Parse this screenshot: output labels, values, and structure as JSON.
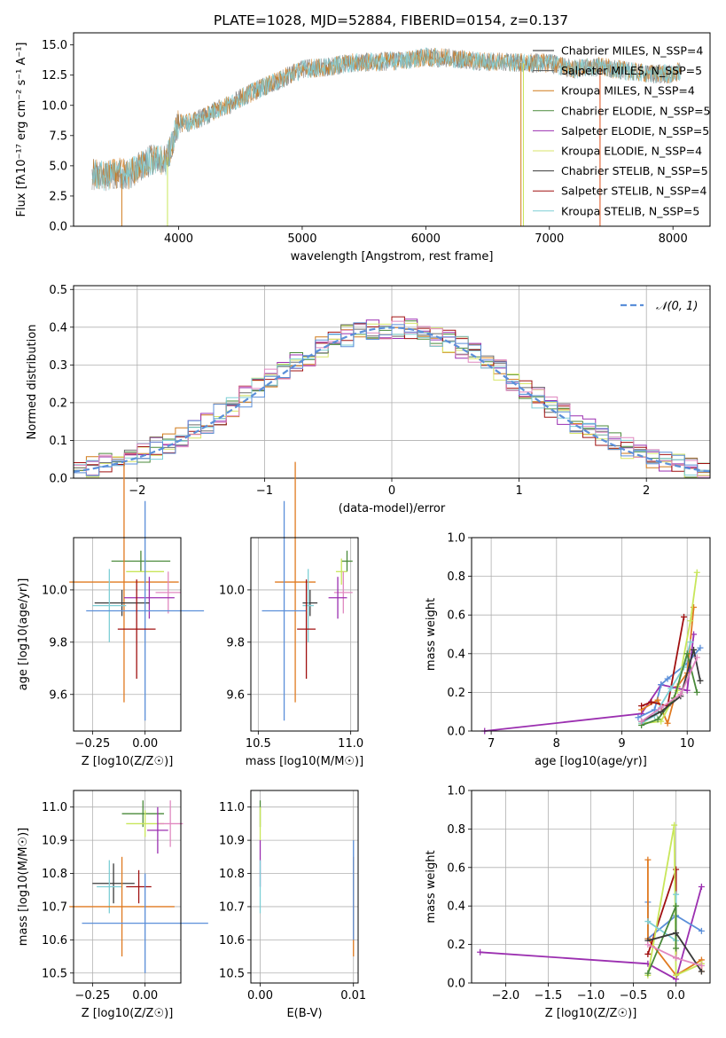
{
  "figure": {
    "title": "PLATE=1028, MJD=52884, FIBERID=0154, z=0.137"
  },
  "chart_data": [
    {
      "type": "line",
      "panel": "spectrum",
      "xlabel": "wavelength [Angstrom, rest frame]",
      "ylabel": "Flux [fλ10⁻¹⁷ erg cm⁻² s⁻¹ A⁻¹]",
      "xlim": [
        3150,
        8300
      ],
      "ylim": [
        0,
        16
      ],
      "xticks": [
        4000,
        5000,
        6000,
        7000,
        8000
      ],
      "yticks": [
        0.0,
        2.5,
        5.0,
        7.5,
        10.0,
        12.5,
        15.0
      ],
      "grid": false,
      "legend_position": "top-right",
      "series": [
        {
          "name": "Chabrier MILES, N_SSP=4",
          "color": "#1f1f1f"
        },
        {
          "name": "Salpeter MILES, N_SSP=5",
          "color": "#5a5a5a"
        },
        {
          "name": "Kroupa MILES, N_SSP=4",
          "color": "#d07a1a"
        },
        {
          "name": "Chabrier ELODIE, N_SSP=5",
          "color": "#4a8a3a"
        },
        {
          "name": "Salpeter ELODIE, N_SSP=5",
          "color": "#9b2fb0"
        },
        {
          "name": "Kroupa ELODIE, N_SSP=4",
          "color": "#d8e66a"
        },
        {
          "name": "Chabrier STELIB, N_SSP=5",
          "color": "#3a3a3a"
        },
        {
          "name": "Salpeter STELIB, N_SSP=4",
          "color": "#a01010"
        },
        {
          "name": "Kroupa STELIB, N_SSP=5",
          "color": "#7ecfd6"
        }
      ],
      "continuum": {
        "x": [
          3300,
          3400,
          3500,
          3600,
          3700,
          3800,
          3900,
          4000,
          4100,
          4200,
          4300,
          4400,
          4500,
          4600,
          4700,
          4800,
          4900,
          5000,
          5200,
          5400,
          5600,
          5800,
          6000,
          6200,
          6400,
          6600,
          6800,
          7000,
          7200,
          7400,
          7600,
          7800,
          8000,
          8050
        ],
        "y": [
          4.3,
          4.1,
          4.4,
          4.3,
          5.0,
          5.6,
          5.4,
          8.5,
          8.6,
          9.0,
          9.6,
          10.0,
          10.6,
          11.1,
          11.6,
          12.0,
          12.5,
          13.0,
          13.2,
          13.5,
          13.6,
          13.7,
          14.0,
          13.9,
          13.7,
          13.6,
          13.5,
          13.5,
          13.0,
          13.2,
          12.9,
          12.6,
          12.6,
          12.8
        ]
      }
    },
    {
      "type": "histogram",
      "panel": "residuals",
      "xlabel": "(data-model)/error",
      "ylabel": "Normed distribution",
      "xlim": [
        -2.5,
        2.5
      ],
      "ylim": [
        0,
        0.51
      ],
      "xticks": [
        -2,
        -1,
        0,
        1,
        2
      ],
      "yticks": [
        0.0,
        0.1,
        0.2,
        0.3,
        0.4,
        0.5
      ],
      "grid": true,
      "legend": [
        {
          "name": "N(0,1)",
          "style": "dashed",
          "color": "#5b8fd9"
        }
      ],
      "legend_position": "top-right"
    },
    {
      "type": "scatter",
      "panel": "age-vs-Z",
      "xlabel": "Z [log10(Z/Z☉)]",
      "ylabel": "age  [log10(age/yr)]",
      "xlim": [
        -0.34,
        0.17
      ],
      "ylim": [
        9.46,
        10.2
      ],
      "xticks": [
        -0.25,
        0.0
      ],
      "yticks": [
        9.6,
        9.8,
        10.0
      ],
      "grid": true,
      "points": [
        {
          "x": -0.02,
          "y": 10.11,
          "xerr": 0.14,
          "yerr": 0.04,
          "color": "#4a8a3a"
        },
        {
          "x": 0.0,
          "y": 10.07,
          "xerr": 0.09,
          "yerr": 0.05,
          "color": "#c8e65a"
        },
        {
          "x": -0.1,
          "y": 10.03,
          "xerr": 0.26,
          "yerr": 0.46,
          "color": "#e07a20"
        },
        {
          "x": 0.11,
          "y": 9.99,
          "xerr": 0.06,
          "yerr": 0.08,
          "color": "#e088c0"
        },
        {
          "x": 0.02,
          "y": 9.97,
          "xerr": 0.12,
          "yerr": 0.08,
          "color": "#9b2fb0"
        },
        {
          "x": -0.11,
          "y": 9.95,
          "xerr": 0.13,
          "yerr": 0.05,
          "color": "#3a3a3a"
        },
        {
          "x": -0.17,
          "y": 9.94,
          "xerr": 0.08,
          "yerr": 0.14,
          "color": "#7ecfd6"
        },
        {
          "x": 0.0,
          "y": 9.92,
          "xerr": 0.28,
          "yerr": 0.42,
          "color": "#5b8fd9"
        },
        {
          "x": -0.04,
          "y": 9.85,
          "xerr": 0.09,
          "yerr": 0.19,
          "color": "#a01010"
        }
      ]
    },
    {
      "type": "scatter",
      "panel": "age-vs-mass",
      "xlabel": "mass [log10(M/M☉)]",
      "ylabel": "",
      "xlim": [
        10.46,
        11.04
      ],
      "ylim": [
        9.46,
        10.2
      ],
      "xticks": [
        10.5,
        11.0
      ],
      "yticks": [
        9.6,
        9.8,
        10.0
      ],
      "grid": true,
      "points": [
        {
          "x": 10.98,
          "y": 10.11,
          "xerr": 0.03,
          "yerr": 0.04,
          "color": "#4a8a3a"
        },
        {
          "x": 10.95,
          "y": 10.07,
          "xerr": 0.03,
          "yerr": 0.05,
          "color": "#c8e65a"
        },
        {
          "x": 10.7,
          "y": 10.03,
          "xerr": 0.11,
          "yerr": 0.46,
          "color": "#e07a20"
        },
        {
          "x": 10.96,
          "y": 9.99,
          "xerr": 0.05,
          "yerr": 0.08,
          "color": "#e088c0"
        },
        {
          "x": 10.93,
          "y": 9.97,
          "xerr": 0.05,
          "yerr": 0.08,
          "color": "#9b2fb0"
        },
        {
          "x": 10.78,
          "y": 9.95,
          "xerr": 0.04,
          "yerr": 0.05,
          "color": "#3a3a3a"
        },
        {
          "x": 10.77,
          "y": 9.94,
          "xerr": 0.03,
          "yerr": 0.14,
          "color": "#7ecfd6"
        },
        {
          "x": 10.64,
          "y": 9.92,
          "xerr": 0.12,
          "yerr": 0.42,
          "color": "#5b8fd9"
        },
        {
          "x": 10.76,
          "y": 9.85,
          "xerr": 0.05,
          "yerr": 0.19,
          "color": "#a01010"
        }
      ]
    },
    {
      "type": "line",
      "panel": "mass-weight-vs-age",
      "xlabel": "age  [log10(age/yr)]",
      "ylabel": "mass weight",
      "xlim": [
        6.7,
        10.35
      ],
      "ylim": [
        0,
        1
      ],
      "xticks": [
        7,
        8,
        9,
        10
      ],
      "yticks": [
        0.0,
        0.2,
        0.4,
        0.6,
        0.8,
        1.0
      ],
      "grid": true,
      "series": [
        {
          "color": "#9b2fb0",
          "x": [
            6.9,
            9.3,
            9.6,
            10.0,
            10.1
          ],
          "y": [
            0.0,
            0.09,
            0.24,
            0.21,
            0.5
          ]
        },
        {
          "color": "#5b8fd9",
          "x": [
            9.25,
            9.5,
            9.6,
            9.7,
            10.0,
            10.2
          ],
          "y": [
            0.07,
            0.11,
            0.24,
            0.27,
            0.35,
            0.43
          ]
        },
        {
          "color": "#e07a20",
          "x": [
            9.3,
            9.55,
            9.7,
            9.85,
            10.0,
            10.1
          ],
          "y": [
            0.11,
            0.16,
            0.04,
            0.23,
            0.3,
            0.64
          ]
        },
        {
          "color": "#a01010",
          "x": [
            9.3,
            9.45,
            9.7,
            9.95
          ],
          "y": [
            0.13,
            0.15,
            0.13,
            0.59
          ]
        },
        {
          "color": "#c8e65a",
          "x": [
            9.3,
            9.6,
            9.85,
            10.05,
            10.15
          ],
          "y": [
            0.04,
            0.05,
            0.21,
            0.57,
            0.82
          ]
        },
        {
          "color": "#7ecfd6",
          "x": [
            9.3,
            9.5,
            9.75,
            9.95,
            10.05
          ],
          "y": [
            0.04,
            0.08,
            0.22,
            0.33,
            0.46
          ]
        },
        {
          "color": "#4a8a3a",
          "x": [
            9.3,
            9.55,
            9.8,
            10.0,
            10.15
          ],
          "y": [
            0.03,
            0.06,
            0.17,
            0.4,
            0.2
          ]
        },
        {
          "color": "#3a3a3a",
          "x": [
            9.3,
            9.6,
            9.9,
            10.1,
            10.2
          ],
          "y": [
            0.05,
            0.1,
            0.18,
            0.42,
            0.26
          ]
        },
        {
          "color": "#e088c0",
          "x": [
            9.3,
            9.6,
            9.9,
            10.15
          ],
          "y": [
            0.05,
            0.12,
            0.19,
            0.38
          ]
        }
      ]
    },
    {
      "type": "scatter",
      "panel": "mass-vs-Z",
      "xlabel": "Z [log10(Z/Z☉)]",
      "ylabel": "mass [log10(M/M☉)]",
      "xlim": [
        -0.34,
        0.17
      ],
      "ylim": [
        10.47,
        11.05
      ],
      "xticks": [
        -0.25,
        0.0
      ],
      "yticks": [
        10.5,
        10.6,
        10.7,
        10.8,
        10.9,
        11.0
      ],
      "grid": true,
      "points": [
        {
          "x": -0.01,
          "y": 10.98,
          "xerr": 0.1,
          "yerr": 0.04,
          "color": "#4a8a3a"
        },
        {
          "x": 0.0,
          "y": 10.95,
          "xerr": 0.09,
          "yerr": 0.04,
          "color": "#c8e65a"
        },
        {
          "x": 0.12,
          "y": 10.95,
          "xerr": 0.06,
          "yerr": 0.07,
          "color": "#e088c0"
        },
        {
          "x": 0.06,
          "y": 10.93,
          "xerr": 0.05,
          "yerr": 0.07,
          "color": "#9b2fb0"
        },
        {
          "x": -0.15,
          "y": 10.77,
          "xerr": 0.1,
          "yerr": 0.06,
          "color": "#3a3a3a"
        },
        {
          "x": -0.17,
          "y": 10.76,
          "xerr": 0.06,
          "yerr": 0.08,
          "color": "#7ecfd6"
        },
        {
          "x": -0.03,
          "y": 10.76,
          "xerr": 0.06,
          "yerr": 0.05,
          "color": "#a01010"
        },
        {
          "x": -0.11,
          "y": 10.7,
          "xerr": 0.25,
          "yerr": 0.15,
          "color": "#e07a20"
        },
        {
          "x": 0.0,
          "y": 10.65,
          "xerr": 0.3,
          "yerr": 0.15,
          "color": "#5b8fd9"
        }
      ]
    },
    {
      "type": "scatter",
      "panel": "mass-vs-ebv",
      "xlabel": "E(B-V)",
      "ylabel": "",
      "xlim": [
        -0.001,
        0.0105
      ],
      "ylim": [
        10.47,
        11.05
      ],
      "xticks": [
        0.0,
        0.01
      ],
      "xticklabels": [
        "0.00",
        "0.01"
      ],
      "yticks": [
        10.5,
        10.6,
        10.7,
        10.8,
        10.9,
        11.0
      ],
      "grid": true,
      "points": [
        {
          "x": 0.0,
          "y": 10.98,
          "yerr": 0.04,
          "color": "#4a8a3a"
        },
        {
          "x": 0.0,
          "y": 10.95,
          "yerr": 0.05,
          "color": "#c8e65a"
        },
        {
          "x": 0.0,
          "y": 10.83,
          "yerr": 0.07,
          "color": "#9b2fb0"
        },
        {
          "x": 0.0,
          "y": 10.76,
          "yerr": 0.08,
          "color": "#7ecfd6"
        },
        {
          "x": 0.01,
          "y": 10.7,
          "yerr": 0.15,
          "color": "#e07a20"
        },
        {
          "x": 0.01,
          "y": 10.75,
          "yerr": 0.15,
          "color": "#5b8fd9"
        }
      ]
    },
    {
      "type": "line",
      "panel": "mass-weight-vs-Z",
      "xlabel": "Z [log10(Z/Z☉)]",
      "ylabel": "mass weight",
      "xlim": [
        -2.4,
        0.4
      ],
      "ylim": [
        0,
        1
      ],
      "xticks": [
        -2.0,
        -1.5,
        -1.0,
        -0.5,
        0.0
      ],
      "xticklabels": [
        "−2.0",
        "−1.5",
        "−1.0",
        "−0.5",
        "0.0"
      ],
      "yticks": [
        0.0,
        0.2,
        0.4,
        0.6,
        0.8,
        1.0
      ],
      "grid": true,
      "series": [
        {
          "color": "#9b2fb0",
          "x": [
            -2.3,
            -0.33,
            0.0,
            0.3
          ],
          "y": [
            0.16,
            0.1,
            0.02,
            0.5
          ]
        },
        {
          "color": "#5b8fd9",
          "x": [
            -0.33,
            -0.33,
            0.0,
            0.3
          ],
          "y": [
            0.42,
            0.23,
            0.35,
            0.27
          ]
        },
        {
          "color": "#e07a20",
          "x": [
            -0.33,
            -0.33,
            0.0,
            0.3,
            0.3
          ],
          "y": [
            0.64,
            0.23,
            0.04,
            0.12,
            0.06
          ]
        },
        {
          "color": "#a01010",
          "x": [
            -0.33,
            0.0,
            0.0
          ],
          "y": [
            0.15,
            0.59,
            0.13
          ]
        },
        {
          "color": "#c8e65a",
          "x": [
            -0.33,
            -0.02,
            0.0,
            0.3
          ],
          "y": [
            0.04,
            0.82,
            0.04,
            0.1
          ]
        },
        {
          "color": "#7ecfd6",
          "x": [
            -0.33,
            0.0,
            0.0
          ],
          "y": [
            0.32,
            0.22,
            0.46
          ]
        },
        {
          "color": "#4a8a3a",
          "x": [
            -0.33,
            0.0,
            0.0
          ],
          "y": [
            0.05,
            0.4,
            0.18
          ]
        },
        {
          "color": "#3a3a3a",
          "x": [
            -0.33,
            0.0,
            0.3
          ],
          "y": [
            0.22,
            0.26,
            0.06
          ]
        },
        {
          "color": "#e088c0",
          "x": [
            -0.33,
            0.0,
            0.3
          ],
          "y": [
            0.2,
            0.13,
            0.09
          ]
        }
      ]
    }
  ]
}
